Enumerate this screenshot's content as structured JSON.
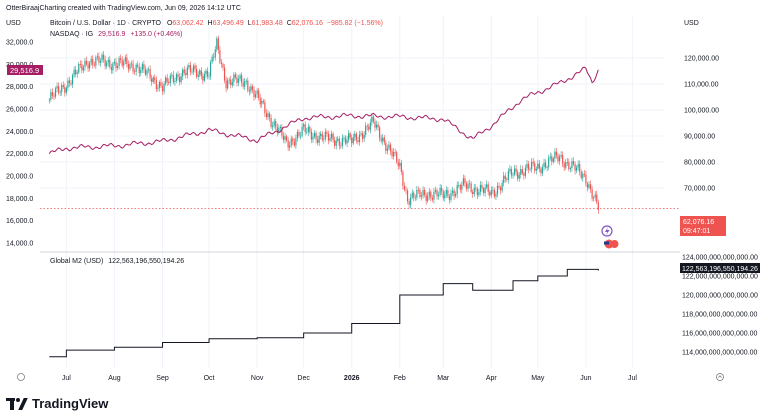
{
  "header": {
    "watermark_line": "OtterBiraajCharting created with TradingView.com, Jun 09, 2026 14:12 UTC",
    "left_unit": "USD",
    "right_unit": "USD",
    "btc_legend": {
      "name": "Bitcoin / U.S. Dollar · 1D · CRYPTO",
      "o_label": "O",
      "o": "63,062.42",
      "h_label": "H",
      "h": "63,496.49",
      "l_label": "L",
      "l": "61,983.48",
      "c_label": "C",
      "c": "62,076.16",
      "change": "−985.82 (−1.56%)"
    },
    "nasdaq_legend": {
      "name": "NASDAQ · IG",
      "value": "29,516.9",
      "change": "+135.0 (+0.46%)"
    },
    "m2_legend": {
      "name": "Global M2 (USD)",
      "value": "122,563,196,550,194.26"
    }
  },
  "badges": {
    "nasdaq_price": "29,516.9",
    "btc_price": "62,076.16",
    "btc_countdown": "09:47:01",
    "m2_value": "122,563,196,550,194.26"
  },
  "colors": {
    "btc_up": "#26a69a",
    "btc_down": "#ef5350",
    "nasdaq": "#a51e63",
    "m2": "#131722",
    "price_line": "#ef5350",
    "grid": "#f0f3fa"
  },
  "icons": [
    "lightning-icon",
    "us-flag-icon"
  ],
  "footer": {
    "brand": "TradingView"
  },
  "chart_data": [
    {
      "type": "line",
      "title": "Bitcoin / U.S. Dollar · 1D · CRYPTO",
      "note": "candlestick series, approximate monthly points read from chart",
      "x": [
        "2025-06-20",
        "2025-07-01",
        "2025-07-15",
        "2025-08-01",
        "2025-08-15",
        "2025-09-01",
        "2025-09-15",
        "2025-10-01",
        "2025-10-06",
        "2025-10-12",
        "2025-10-25",
        "2025-11-05",
        "2025-11-20",
        "2025-12-01",
        "2025-12-15",
        "2026-01-01",
        "2026-01-15",
        "2026-02-01",
        "2026-02-06",
        "2026-02-20",
        "2026-03-01",
        "2026-03-15",
        "2026-04-01",
        "2026-04-15",
        "2026-05-01",
        "2026-05-15",
        "2026-06-01",
        "2026-06-09"
      ],
      "values": [
        104000,
        110000,
        119000,
        118000,
        117000,
        109000,
        115000,
        114000,
        125000,
        111000,
        111000,
        101000,
        87000,
        92000,
        89000,
        88000,
        95000,
        78000,
        66000,
        68000,
        67000,
        71000,
        68000,
        76000,
        78000,
        82000,
        74000,
        62076
      ],
      "y_axis": "right, USD",
      "y_ticks": [
        "120,000.00",
        "110,000.00",
        "100,000.00",
        "90,000.00",
        "80,000.00",
        "70,000.00"
      ]
    },
    {
      "type": "line",
      "title": "NASDAQ · IG",
      "x": [
        "2025-06-20",
        "2025-07-01",
        "2025-08-01",
        "2025-09-01",
        "2025-10-01",
        "2025-11-01",
        "2025-12-01",
        "2026-01-01",
        "2026-02-01",
        "2026-03-01",
        "2026-03-20",
        "2026-04-01",
        "2026-04-20",
        "2026-05-01",
        "2026-05-15",
        "2026-06-01",
        "2026-06-05",
        "2026-06-09"
      ],
      "values": [
        22000,
        22500,
        22700,
        23100,
        24100,
        23200,
        25200,
        25400,
        25300,
        25100,
        23300,
        24500,
        26800,
        27500,
        28300,
        29600,
        28400,
        29516.9
      ],
      "y_axis": "left",
      "y_ticks": [
        "32,000.0",
        "30,000.0",
        "28,000.0",
        "26,000.0",
        "24,000.0",
        "22,000.0",
        "20,000.0",
        "18,000.0",
        "16,000.0",
        "14,000.0"
      ]
    },
    {
      "type": "line",
      "title": "Global M2 (USD)",
      "x": [
        "2025-06-20",
        "2025-07-01",
        "2025-08-01",
        "2025-09-01",
        "2025-10-01",
        "2025-11-01",
        "2025-12-01",
        "2026-01-01",
        "2026-02-01",
        "2026-03-01",
        "2026-03-20",
        "2026-04-15",
        "2026-05-01",
        "2026-05-20",
        "2026-06-09"
      ],
      "values": [
        113500000000000,
        114200000000000,
        114500000000000,
        115000000000000,
        115400000000000,
        115500000000000,
        116000000000000,
        117000000000000,
        120000000000000,
        121200000000000,
        120500000000000,
        121500000000000,
        122000000000000,
        122700000000000,
        122563196550194
      ],
      "y_ticks": [
        "124,000,000,000,000.00",
        "122,000,000,000,000.00",
        "120,000,000,000,000.00",
        "118,000,000,000,000.00",
        "116,000,000,000,000.00",
        "114,000,000,000,000.00"
      ]
    }
  ],
  "x_axis": {
    "ticks": [
      "Jul",
      "Aug",
      "Sep",
      "Oct",
      "Nov",
      "Dec",
      "2026",
      "Feb",
      "Mar",
      "Apr",
      "May",
      "Jun",
      "Jul"
    ]
  }
}
